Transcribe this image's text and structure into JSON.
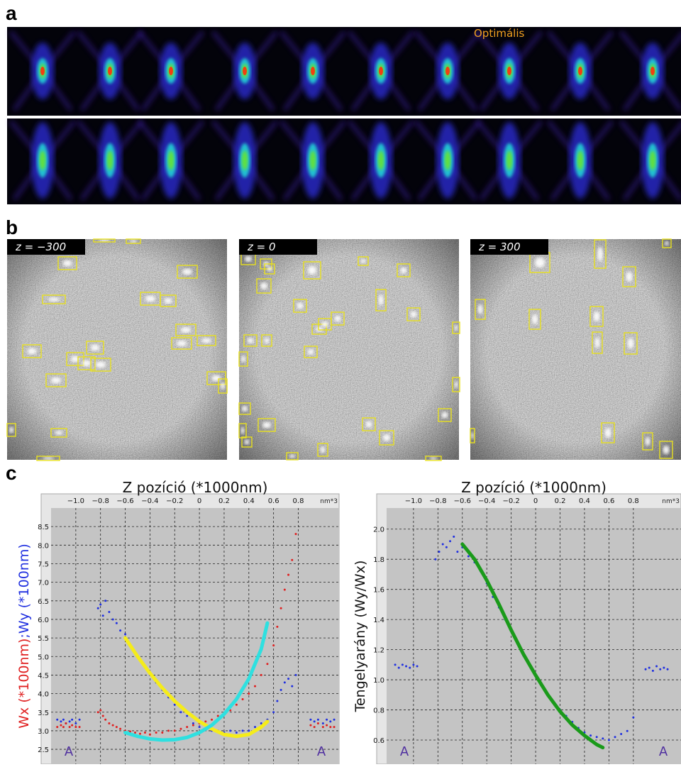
{
  "panels": {
    "a": "a",
    "b": "b",
    "c": "c"
  },
  "panel_a": {
    "annotation": "Optimális"
  },
  "panel_b": {
    "labels": [
      "z = −300",
      "z = 0",
      "z = 300"
    ]
  },
  "chart_data": [
    {
      "type": "scatter",
      "title": "Z pozíció (*1000nm)",
      "x_unit": "nm*3",
      "ylabel_parts": [
        {
          "text": "Wx (*100nm)",
          "color": "#e02020"
        },
        {
          "text": ";Wy (*100nm)",
          "color": "#2030e0"
        }
      ],
      "annotations": [
        "A",
        "A"
      ],
      "grid": true,
      "xlim": [
        -1.2,
        1.13
      ],
      "ylim": [
        2.1,
        9.0
      ],
      "xticks": [
        {
          "value": -1.0,
          "label": "−1.0"
        },
        {
          "value": -0.8,
          "label": "−0.8"
        },
        {
          "value": -0.6,
          "label": "−0.6"
        },
        {
          "value": -0.4,
          "label": "−0.4"
        },
        {
          "value": -0.2,
          "label": "−0.2"
        },
        0,
        0.2,
        0.4,
        0.6,
        0.8
      ],
      "yticks": [
        2.5,
        {
          "value": 3,
          "label": "3.0"
        },
        3.5,
        {
          "value": 4,
          "label": "4.0"
        },
        4.5,
        {
          "value": 5,
          "label": "5.0"
        },
        5.5,
        {
          "value": 6,
          "label": "6.0"
        },
        6.5,
        {
          "value": 7,
          "label": "7.0"
        },
        7.5,
        {
          "value": 8,
          "label": "8.0"
        },
        8.5
      ],
      "series": [
        {
          "kind": "points",
          "color": "#2030e0",
          "x": [
            -1.15,
            -1.12,
            -1.1,
            -1.08,
            -1.05,
            -1.03,
            -1.0,
            -0.97,
            -0.82,
            -0.8,
            -0.78,
            -0.76,
            -0.73,
            -0.7,
            -0.67,
            -0.64,
            -0.6,
            -0.56,
            -0.52,
            -0.48,
            -0.44,
            -0.4,
            -0.35,
            -0.3,
            -0.25,
            -0.2,
            -0.15,
            -0.1,
            -0.05,
            0,
            0.05,
            0.1,
            0.15,
            0.2,
            0.25,
            0.3,
            0.35,
            0.4,
            0.45,
            0.5,
            0.55,
            0.6,
            0.63,
            0.66,
            0.69,
            0.72,
            0.75,
            0.78,
            0.9,
            0.93,
            0.96,
            1.0,
            1.03,
            1.06,
            1.09
          ],
          "values": [
            3.3,
            3.25,
            3.3,
            3.2,
            3.25,
            3.3,
            3.2,
            3.3,
            6.3,
            6.4,
            6.1,
            6.5,
            6.2,
            6.0,
            5.9,
            5.7,
            5.6,
            5.3,
            5.1,
            4.9,
            4.7,
            4.5,
            4.3,
            4.1,
            3.9,
            3.7,
            3.5,
            3.4,
            3.2,
            3.1,
            3.05,
            3.0,
            3.0,
            2.95,
            3.0,
            2.95,
            3.0,
            3.0,
            3.1,
            3.2,
            3.3,
            3.5,
            3.8,
            4.1,
            4.3,
            4.4,
            4.2,
            4.5,
            3.3,
            3.25,
            3.3,
            3.2,
            3.3,
            3.25,
            3.3
          ]
        },
        {
          "kind": "points",
          "color": "#e02020",
          "x": [
            -1.15,
            -1.12,
            -1.1,
            -1.08,
            -1.05,
            -1.03,
            -1.0,
            -0.97,
            -0.82,
            -0.8,
            -0.78,
            -0.76,
            -0.73,
            -0.7,
            -0.67,
            -0.64,
            -0.6,
            -0.56,
            -0.52,
            -0.48,
            -0.44,
            -0.4,
            -0.35,
            -0.3,
            -0.25,
            -0.2,
            -0.15,
            -0.1,
            -0.05,
            0,
            0.05,
            0.1,
            0.15,
            0.2,
            0.25,
            0.3,
            0.35,
            0.4,
            0.45,
            0.5,
            0.55,
            0.6,
            0.63,
            0.66,
            0.69,
            0.72,
            0.75,
            0.78,
            0.9,
            0.93,
            0.96,
            1.0,
            1.03,
            1.06,
            1.09
          ],
          "values": [
            3.1,
            3.15,
            3.1,
            3.2,
            3.1,
            3.15,
            3.1,
            3.1,
            3.5,
            3.55,
            3.4,
            3.3,
            3.2,
            3.15,
            3.1,
            3.05,
            3.0,
            2.98,
            2.95,
            2.92,
            2.95,
            2.9,
            2.95,
            2.95,
            3.0,
            3.0,
            3.05,
            3.1,
            3.15,
            3.2,
            3.25,
            3.3,
            3.4,
            3.45,
            3.55,
            3.7,
            3.85,
            4.0,
            4.2,
            4.5,
            4.8,
            5.3,
            5.8,
            6.3,
            6.8,
            7.2,
            7.6,
            8.3,
            3.15,
            3.1,
            3.2,
            3.1,
            3.15,
            3.1,
            3.1
          ]
        },
        {
          "kind": "curve",
          "color": "#f5ec1a",
          "x": [
            -0.6,
            -0.5,
            -0.4,
            -0.3,
            -0.2,
            -0.1,
            0,
            0.1,
            0.2,
            0.3,
            0.4,
            0.5,
            0.55
          ],
          "values": [
            5.5,
            5.0,
            4.55,
            4.15,
            3.8,
            3.5,
            3.25,
            3.05,
            2.9,
            2.85,
            2.9,
            3.1,
            3.25
          ]
        },
        {
          "kind": "curve",
          "color": "#2ee0e0",
          "x": [
            -0.6,
            -0.5,
            -0.4,
            -0.3,
            -0.2,
            -0.1,
            0,
            0.1,
            0.2,
            0.3,
            0.4,
            0.5,
            0.55
          ],
          "values": [
            2.95,
            2.85,
            2.78,
            2.75,
            2.76,
            2.82,
            2.95,
            3.15,
            3.45,
            3.85,
            4.4,
            5.2,
            5.9
          ]
        }
      ]
    },
    {
      "type": "scatter",
      "title": "Z pozíció (*1000nm)",
      "x_unit": "nm*3",
      "ylabel_parts": [
        {
          "text": "Tengelyarány (Wy/Wx)",
          "color": "#111111"
        }
      ],
      "annotations": [
        "A",
        "A"
      ],
      "grid": true,
      "xlim": [
        -1.22,
        1.19
      ],
      "ylim": [
        0.44,
        2.14
      ],
      "xticks": [
        {
          "value": -1.0,
          "label": "−1.0"
        },
        {
          "value": -0.8,
          "label": "−0.8"
        },
        {
          "value": -0.6,
          "label": "−0.6"
        },
        {
          "value": -0.4,
          "label": "−0.4"
        },
        {
          "value": -0.2,
          "label": "−0.2"
        },
        0,
        0.2,
        0.4,
        0.6,
        0.8
      ],
      "yticks": [
        0.6,
        0.8,
        {
          "value": 1,
          "label": "1.0"
        },
        1.2,
        1.4,
        1.6,
        1.8,
        {
          "value": 2,
          "label": "2.0"
        }
      ],
      "series": [
        {
          "kind": "points",
          "color": "#2030e0",
          "x": [
            -1.15,
            -1.12,
            -1.09,
            -1.06,
            -1.03,
            -1.0,
            -0.97,
            -0.82,
            -0.79,
            -0.76,
            -0.73,
            -0.7,
            -0.67,
            -0.64,
            -0.6,
            -0.55,
            -0.5,
            -0.45,
            -0.4,
            -0.35,
            -0.3,
            -0.25,
            -0.2,
            -0.15,
            -0.1,
            -0.05,
            0,
            0.05,
            0.1,
            0.15,
            0.2,
            0.25,
            0.3,
            0.35,
            0.4,
            0.45,
            0.5,
            0.55,
            0.6,
            0.65,
            0.7,
            0.75,
            0.8,
            0.9,
            0.93,
            0.96,
            0.99,
            1.02,
            1.05,
            1.08
          ],
          "values": [
            1.1,
            1.08,
            1.1,
            1.09,
            1.08,
            1.1,
            1.09,
            1.8,
            1.85,
            1.9,
            1.88,
            1.92,
            1.95,
            1.85,
            1.88,
            1.82,
            1.78,
            1.72,
            1.64,
            1.55,
            1.48,
            1.4,
            1.32,
            1.24,
            1.16,
            1.1,
            1.03,
            0.97,
            0.9,
            0.85,
            0.8,
            0.76,
            0.72,
            0.68,
            0.65,
            0.63,
            0.62,
            0.61,
            0.6,
            0.62,
            0.64,
            0.66,
            0.75,
            1.07,
            1.08,
            1.06,
            1.09,
            1.07,
            1.08,
            1.07
          ]
        },
        {
          "kind": "curve",
          "color": "#1a9a1a",
          "x": [
            -0.6,
            -0.5,
            -0.4,
            -0.3,
            -0.2,
            -0.1,
            0,
            0.1,
            0.2,
            0.3,
            0.4,
            0.5,
            0.55
          ],
          "values": [
            1.9,
            1.8,
            1.66,
            1.5,
            1.33,
            1.17,
            1.03,
            0.9,
            0.79,
            0.7,
            0.63,
            0.57,
            0.55
          ]
        }
      ]
    }
  ]
}
